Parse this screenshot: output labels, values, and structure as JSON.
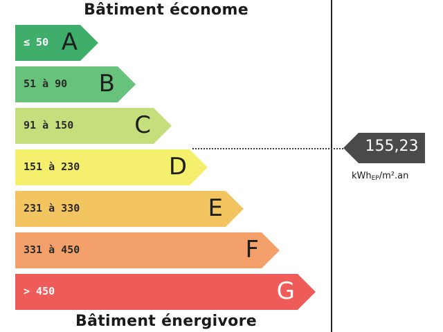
{
  "labels": {
    "top": "Bâtiment économe",
    "bottom": "Bâtiment énergivore"
  },
  "classes": [
    {
      "letter": "A",
      "range": "≤ 50",
      "color": "#3fae6a"
    },
    {
      "letter": "B",
      "range": "51 à 90",
      "color": "#67c27b"
    },
    {
      "letter": "C",
      "range": "91 à 150",
      "color": "#c4df7c"
    },
    {
      "letter": "D",
      "range": "151 à 230",
      "color": "#f5ef6e"
    },
    {
      "letter": "E",
      "range": "231 à 330",
      "color": "#f3c561"
    },
    {
      "letter": "F",
      "range": "331 à 450",
      "color": "#f3a06a"
    },
    {
      "letter": "G",
      "range": "> 450",
      "color": "#ee5b58"
    }
  ],
  "indicator": {
    "value": "155,23",
    "unit_main": "kWh",
    "unit_sub": "EP",
    "unit_rest": "/m².an",
    "current_class": "D",
    "color": "#4a4a4a"
  }
}
